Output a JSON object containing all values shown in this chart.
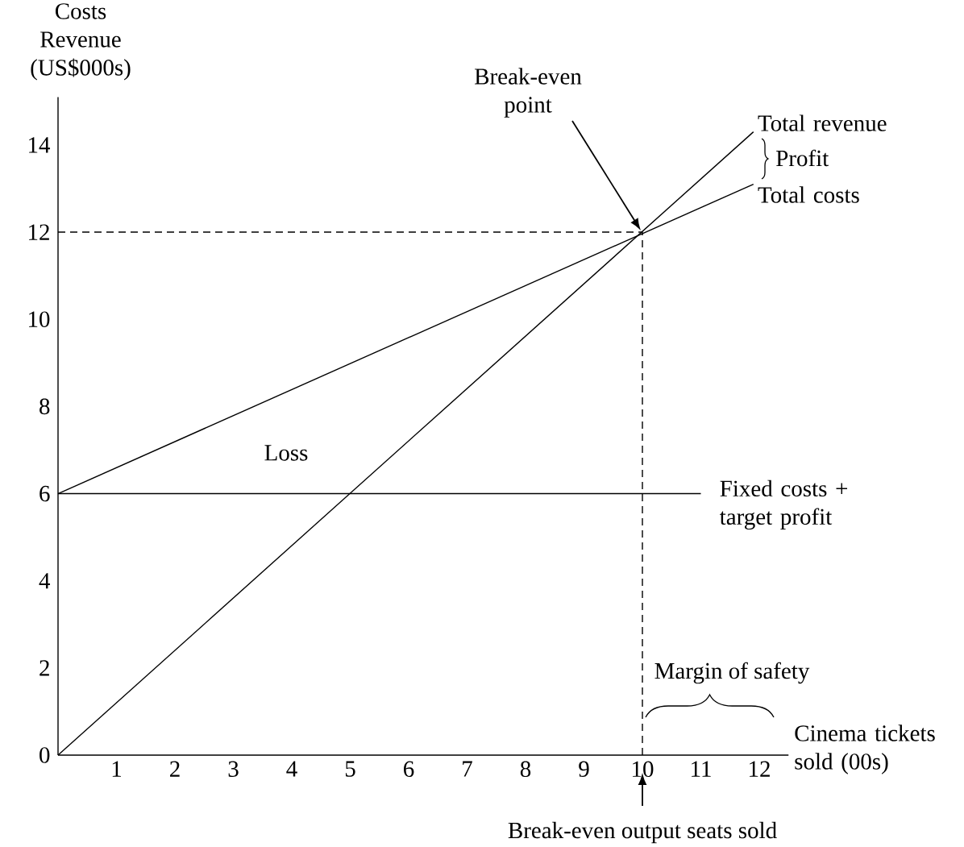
{
  "chart_data": {
    "type": "line",
    "ylabel": "Costs Revenue (US$000s)",
    "xlabel": "Cinema tickets sold (00s)",
    "xlim": [
      0,
      12.5
    ],
    "ylim": [
      0,
      15.1
    ],
    "xticks": [
      1,
      2,
      3,
      4,
      5,
      6,
      7,
      8,
      9,
      10,
      11,
      12
    ],
    "yticks": [
      0,
      2,
      4,
      6,
      8,
      10,
      12,
      14
    ],
    "marker": "none",
    "series": [
      {
        "name": "Total revenue",
        "color": "#000000",
        "x": [
          0,
          11.9
        ],
        "values": [
          0,
          14.3
        ]
      },
      {
        "name": "Total costs",
        "color": "#000000",
        "x": [
          0,
          11.9
        ],
        "values": [
          6,
          13.1
        ]
      },
      {
        "name": "Fixed costs + target profit",
        "color": "#000000",
        "x": [
          0,
          11
        ],
        "values": [
          6,
          6
        ]
      },
      {
        "color": "#000000",
        "line_style": "dashed",
        "x": [
          0,
          10,
          10
        ],
        "values": [
          12,
          12,
          0
        ]
      }
    ],
    "annotations": [
      "Loss",
      "Break-even point",
      "Profit",
      "Break-even output seats sold",
      "Margin of safety"
    ]
  }
}
